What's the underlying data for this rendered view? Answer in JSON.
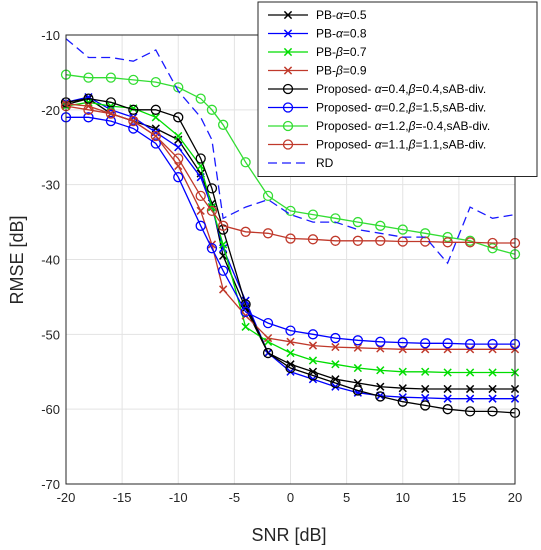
{
  "chart_data": {
    "type": "line",
    "xlabel": "SNR [dB]",
    "ylabel": "RMSE [dB]",
    "xlim": [
      -20,
      20
    ],
    "ylim": [
      -70,
      -10
    ],
    "xticks": [
      -20,
      -15,
      -10,
      -5,
      0,
      5,
      10,
      15,
      20
    ],
    "yticks": [
      -10,
      -20,
      -30,
      -40,
      -50,
      -60,
      -70
    ],
    "grid": true,
    "legend_position": "top-right",
    "x": [
      -20,
      -18,
      -16,
      -14,
      -12,
      -10,
      -8,
      -7,
      -6,
      -4,
      -2,
      0,
      2,
      4,
      6,
      8,
      10,
      12,
      14,
      16,
      18,
      20
    ],
    "series": [
      {
        "label_parts": [
          {
            "t": "PB-",
            "s": false
          },
          {
            "t": "α",
            "s": true
          },
          {
            "t": "=0.5",
            "s": false
          }
        ],
        "color": "#000000",
        "marker": "x",
        "dash": false,
        "values": [
          -19.3,
          -18.5,
          -20.5,
          -21.5,
          -22.5,
          -24.0,
          -28.5,
          -32.5,
          -39.5,
          -46.5,
          -52.5,
          -54.0,
          -55.0,
          -56.0,
          -56.5,
          -57.0,
          -57.2,
          -57.3,
          -57.3,
          -57.3,
          -57.3,
          -57.3
        ]
      },
      {
        "label_parts": [
          {
            "t": "PB-",
            "s": false
          },
          {
            "t": "α",
            "s": true
          },
          {
            "t": "=0.8",
            "s": false
          }
        ],
        "color": "#0000ff",
        "marker": "x",
        "dash": false,
        "values": [
          -19.0,
          -18.3,
          -20.0,
          -21.0,
          -23.0,
          -25.0,
          -29.0,
          -33.0,
          -38.5,
          -45.5,
          -52.5,
          -55.0,
          -56.0,
          -57.0,
          -57.8,
          -58.2,
          -58.4,
          -58.5,
          -58.6,
          -58.6,
          -58.6,
          -58.6
        ]
      },
      {
        "label_parts": [
          {
            "t": "PB-",
            "s": false
          },
          {
            "t": "β",
            "s": true
          },
          {
            "t": "=0.7",
            "s": false
          }
        ],
        "color": "#00dd00",
        "marker": "x",
        "dash": false,
        "values": [
          -19.5,
          -19.0,
          -19.5,
          -19.8,
          -21.0,
          -23.5,
          -27.5,
          -33.0,
          -38.0,
          -49.0,
          -51.0,
          -52.5,
          -53.5,
          -54.0,
          -54.5,
          -54.8,
          -55.0,
          -55.0,
          -55.1,
          -55.1,
          -55.1,
          -55.1
        ]
      },
      {
        "label_parts": [
          {
            "t": "PB-",
            "s": false
          },
          {
            "t": "β",
            "s": true
          },
          {
            "t": "=0.9",
            "s": false
          }
        ],
        "color": "#c0392b",
        "marker": "x",
        "dash": false,
        "values": [
          -19.2,
          -19.5,
          -20.5,
          -21.5,
          -23.5,
          -27.5,
          -33.5,
          -38.0,
          -44.0,
          -47.5,
          -50.5,
          -51.0,
          -51.5,
          -51.7,
          -51.8,
          -51.9,
          -52.0,
          -52.0,
          -52.0,
          -52.0,
          -52.0,
          -52.0
        ]
      },
      {
        "label_parts": [
          {
            "t": "Proposed- ",
            "s": false
          },
          {
            "t": "α",
            "s": true
          },
          {
            "t": "=0.4,",
            "s": false
          },
          {
            "t": "β",
            "s": true
          },
          {
            "t": "=0.4,sAB-div.",
            "s": false
          }
        ],
        "color": "#000000",
        "marker": "o",
        "dash": false,
        "values": [
          -19.0,
          -18.5,
          -19.0,
          -20.0,
          -20.0,
          -21.0,
          -26.5,
          -30.5,
          -36.0,
          -46.0,
          -52.5,
          -54.5,
          -55.5,
          -56.5,
          -57.5,
          -58.3,
          -59.0,
          -59.5,
          -60.0,
          -60.3,
          -60.3,
          -60.5
        ]
      },
      {
        "label_parts": [
          {
            "t": "Proposed- ",
            "s": false
          },
          {
            "t": "α",
            "s": true
          },
          {
            "t": "=0.2,",
            "s": false
          },
          {
            "t": "β",
            "s": true
          },
          {
            "t": "=1.5,sAB-div.",
            "s": false
          }
        ],
        "color": "#0000ff",
        "marker": "o",
        "dash": false,
        "values": [
          -21.0,
          -21.0,
          -21.5,
          -22.5,
          -24.5,
          -29.0,
          -35.5,
          -38.5,
          -41.5,
          -47.0,
          -48.5,
          -49.5,
          -50.0,
          -50.5,
          -50.8,
          -51.0,
          -51.1,
          -51.2,
          -51.2,
          -51.3,
          -51.3,
          -51.3
        ]
      },
      {
        "label_parts": [
          {
            "t": "Proposed- ",
            "s": false
          },
          {
            "t": "α",
            "s": true
          },
          {
            "t": "=1.2,",
            "s": false
          },
          {
            "t": "β",
            "s": true
          },
          {
            "t": "=-0.4,sAB-div.",
            "s": false
          }
        ],
        "color": "#33dd33",
        "marker": "o",
        "dash": false,
        "values": [
          -15.3,
          -15.7,
          -15.7,
          -16.0,
          -16.3,
          -17.0,
          -18.5,
          -20.0,
          -22.0,
          -27.0,
          -31.5,
          -33.5,
          -34.0,
          -34.5,
          -35.0,
          -35.5,
          -36.0,
          -36.5,
          -37.0,
          -37.5,
          -38.5,
          -39.3
        ]
      },
      {
        "label_parts": [
          {
            "t": "Proposed- ",
            "s": false
          },
          {
            "t": "α",
            "s": true
          },
          {
            "t": "=1.1,",
            "s": false
          },
          {
            "t": "β",
            "s": true
          },
          {
            "t": "=1.1,sAB-div.",
            "s": false
          }
        ],
        "color": "#c0392b",
        "marker": "o",
        "dash": false,
        "values": [
          -19.5,
          -20.0,
          -20.5,
          -21.5,
          -23.5,
          -26.5,
          -31.5,
          -33.5,
          -35.5,
          -36.3,
          -36.5,
          -37.2,
          -37.3,
          -37.5,
          -37.5,
          -37.5,
          -37.6,
          -37.6,
          -37.7,
          -37.7,
          -37.8,
          -37.8
        ]
      },
      {
        "label_parts": [
          {
            "t": "RD",
            "s": false
          }
        ],
        "color": "#1a1aff",
        "marker": "none",
        "dash": true,
        "values": [
          -10.5,
          -13.0,
          -13.0,
          -13.5,
          -12.0,
          -17.5,
          -21.0,
          -24.0,
          -34.5,
          -33.0,
          -32.0,
          -34.0,
          -35.0,
          -35.0,
          -36.0,
          -36.5,
          -37.0,
          -37.0,
          -40.5,
          -33.0,
          -34.5,
          -34.0
        ]
      }
    ]
  }
}
